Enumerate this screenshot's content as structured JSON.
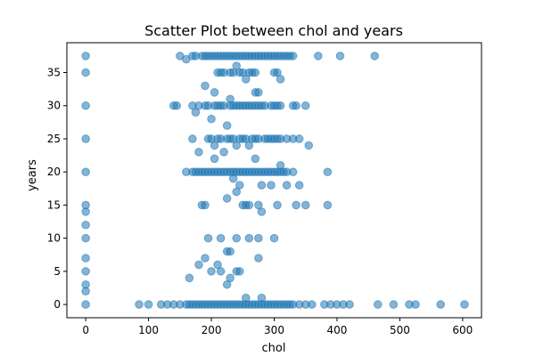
{
  "chart_data": {
    "type": "scatter",
    "title": "Scatter Plot between chol and years",
    "xlabel": "chol",
    "ylabel": "years",
    "xlim": [
      -30,
      630
    ],
    "ylim": [
      -2,
      39.5
    ],
    "xticks": [
      0,
      100,
      200,
      300,
      400,
      500,
      600
    ],
    "yticks": [
      0,
      5,
      10,
      15,
      20,
      25,
      30,
      35
    ],
    "grid": false,
    "legend": "none",
    "point_color": "#1f77b4",
    "point_alpha": 0.55,
    "series": [
      {
        "points": [
          [
            0,
            37.5
          ],
          [
            0,
            35
          ],
          [
            0,
            30
          ],
          [
            0,
            25
          ],
          [
            0,
            20
          ],
          [
            0,
            15
          ],
          [
            0,
            14
          ],
          [
            0,
            12
          ],
          [
            0,
            10
          ],
          [
            0,
            7
          ],
          [
            0,
            5
          ],
          [
            0,
            3
          ],
          [
            0,
            2
          ],
          [
            0,
            0
          ],
          [
            85,
            0
          ],
          [
            100,
            0
          ],
          [
            120,
            0
          ],
          [
            130,
            0
          ],
          [
            140,
            0
          ],
          [
            150,
            0
          ],
          [
            160,
            0
          ],
          [
            165,
            0
          ],
          [
            170,
            0
          ],
          [
            175,
            0
          ],
          [
            180,
            0
          ],
          [
            185,
            0
          ],
          [
            190,
            0
          ],
          [
            195,
            0
          ],
          [
            200,
            0
          ],
          [
            205,
            0
          ],
          [
            210,
            0
          ],
          [
            215,
            0
          ],
          [
            220,
            0
          ],
          [
            225,
            0
          ],
          [
            230,
            0
          ],
          [
            235,
            0
          ],
          [
            240,
            0
          ],
          [
            245,
            0
          ],
          [
            250,
            0
          ],
          [
            255,
            0
          ],
          [
            260,
            0
          ],
          [
            265,
            0
          ],
          [
            270,
            0
          ],
          [
            275,
            0
          ],
          [
            280,
            0
          ],
          [
            285,
            0
          ],
          [
            290,
            0
          ],
          [
            295,
            0
          ],
          [
            300,
            0
          ],
          [
            305,
            0
          ],
          [
            310,
            0
          ],
          [
            315,
            0
          ],
          [
            320,
            0
          ],
          [
            325,
            0
          ],
          [
            330,
            0
          ],
          [
            340,
            0
          ],
          [
            350,
            0
          ],
          [
            360,
            0
          ],
          [
            380,
            0
          ],
          [
            390,
            0
          ],
          [
            400,
            0
          ],
          [
            410,
            0
          ],
          [
            420,
            0
          ],
          [
            465,
            0
          ],
          [
            490,
            0
          ],
          [
            515,
            0
          ],
          [
            525,
            0
          ],
          [
            565,
            0
          ],
          [
            603,
            0
          ],
          [
            165,
            4
          ],
          [
            180,
            6
          ],
          [
            190,
            7
          ],
          [
            200,
            5
          ],
          [
            210,
            6
          ],
          [
            215,
            5
          ],
          [
            225,
            3
          ],
          [
            230,
            4
          ],
          [
            240,
            5
          ],
          [
            245,
            5
          ],
          [
            255,
            1
          ],
          [
            275,
            7
          ],
          [
            280,
            1
          ],
          [
            195,
            10
          ],
          [
            215,
            10
          ],
          [
            225,
            8
          ],
          [
            230,
            8
          ],
          [
            240,
            10
          ],
          [
            260,
            10
          ],
          [
            275,
            10
          ],
          [
            300,
            10
          ],
          [
            185,
            15
          ],
          [
            190,
            15
          ],
          [
            225,
            16
          ],
          [
            240,
            17
          ],
          [
            245,
            18
          ],
          [
            250,
            15
          ],
          [
            255,
            15
          ],
          [
            260,
            15
          ],
          [
            275,
            15
          ],
          [
            280,
            14
          ],
          [
            305,
            15
          ],
          [
            335,
            15
          ],
          [
            350,
            15
          ],
          [
            385,
            15
          ],
          [
            160,
            20
          ],
          [
            170,
            20
          ],
          [
            175,
            20
          ],
          [
            180,
            20
          ],
          [
            185,
            20
          ],
          [
            190,
            20
          ],
          [
            195,
            20
          ],
          [
            200,
            20
          ],
          [
            205,
            20
          ],
          [
            210,
            20
          ],
          [
            215,
            20
          ],
          [
            220,
            20
          ],
          [
            225,
            20
          ],
          [
            230,
            20
          ],
          [
            235,
            20
          ],
          [
            240,
            20
          ],
          [
            245,
            20
          ],
          [
            250,
            20
          ],
          [
            255,
            20
          ],
          [
            260,
            20
          ],
          [
            265,
            20
          ],
          [
            270,
            20
          ],
          [
            275,
            20
          ],
          [
            280,
            20
          ],
          [
            285,
            20
          ],
          [
            290,
            20
          ],
          [
            295,
            20
          ],
          [
            300,
            20
          ],
          [
            305,
            20
          ],
          [
            310,
            20
          ],
          [
            315,
            20
          ],
          [
            320,
            20
          ],
          [
            330,
            20
          ],
          [
            385,
            20
          ],
          [
            180,
            23
          ],
          [
            205,
            22
          ],
          [
            220,
            23
          ],
          [
            235,
            19
          ],
          [
            270,
            22
          ],
          [
            280,
            18
          ],
          [
            295,
            18
          ],
          [
            310,
            21
          ],
          [
            320,
            18
          ],
          [
            340,
            18
          ],
          [
            170,
            25
          ],
          [
            195,
            25
          ],
          [
            200,
            25
          ],
          [
            205,
            24
          ],
          [
            210,
            25
          ],
          [
            215,
            25
          ],
          [
            225,
            25
          ],
          [
            230,
            25
          ],
          [
            235,
            25
          ],
          [
            240,
            24
          ],
          [
            245,
            25
          ],
          [
            250,
            25
          ],
          [
            255,
            25
          ],
          [
            260,
            24
          ],
          [
            265,
            25
          ],
          [
            270,
            25
          ],
          [
            275,
            25
          ],
          [
            285,
            25
          ],
          [
            290,
            25
          ],
          [
            295,
            25
          ],
          [
            300,
            25
          ],
          [
            305,
            25
          ],
          [
            310,
            25
          ],
          [
            320,
            25
          ],
          [
            330,
            25
          ],
          [
            340,
            25
          ],
          [
            355,
            24
          ],
          [
            140,
            30
          ],
          [
            145,
            30
          ],
          [
            170,
            30
          ],
          [
            175,
            29
          ],
          [
            180,
            30
          ],
          [
            190,
            30
          ],
          [
            195,
            30
          ],
          [
            200,
            28
          ],
          [
            205,
            30
          ],
          [
            210,
            30
          ],
          [
            215,
            30
          ],
          [
            220,
            30
          ],
          [
            225,
            27
          ],
          [
            230,
            30
          ],
          [
            235,
            30
          ],
          [
            240,
            30
          ],
          [
            245,
            30
          ],
          [
            250,
            30
          ],
          [
            255,
            30
          ],
          [
            260,
            30
          ],
          [
            265,
            30
          ],
          [
            270,
            30
          ],
          [
            275,
            30
          ],
          [
            280,
            30
          ],
          [
            285,
            30
          ],
          [
            295,
            30
          ],
          [
            300,
            30
          ],
          [
            305,
            30
          ],
          [
            310,
            30
          ],
          [
            330,
            30
          ],
          [
            335,
            30
          ],
          [
            350,
            30
          ],
          [
            190,
            33
          ],
          [
            205,
            32
          ],
          [
            230,
            31
          ],
          [
            270,
            32
          ],
          [
            275,
            32
          ],
          [
            310,
            34
          ],
          [
            210,
            35
          ],
          [
            215,
            35
          ],
          [
            220,
            35
          ],
          [
            230,
            35
          ],
          [
            235,
            35
          ],
          [
            245,
            35
          ],
          [
            250,
            35
          ],
          [
            255,
            34
          ],
          [
            260,
            35
          ],
          [
            265,
            35
          ],
          [
            270,
            35
          ],
          [
            300,
            35
          ],
          [
            305,
            35
          ],
          [
            240,
            36
          ],
          [
            150,
            37.5
          ],
          [
            160,
            37
          ],
          [
            170,
            37.5
          ],
          [
            175,
            37.5
          ],
          [
            185,
            37.5
          ],
          [
            190,
            37.5
          ],
          [
            195,
            37.5
          ],
          [
            200,
            37.5
          ],
          [
            205,
            37.5
          ],
          [
            210,
            37.5
          ],
          [
            215,
            37.5
          ],
          [
            220,
            37.5
          ],
          [
            225,
            37.5
          ],
          [
            230,
            37.5
          ],
          [
            235,
            37.5
          ],
          [
            240,
            37.5
          ],
          [
            245,
            37.5
          ],
          [
            250,
            37.5
          ],
          [
            255,
            37.5
          ],
          [
            260,
            37.5
          ],
          [
            265,
            37.5
          ],
          [
            270,
            37.5
          ],
          [
            275,
            37.5
          ],
          [
            280,
            37.5
          ],
          [
            285,
            37.5
          ],
          [
            290,
            37.5
          ],
          [
            295,
            37.5
          ],
          [
            300,
            37.5
          ],
          [
            305,
            37.5
          ],
          [
            310,
            37.5
          ],
          [
            315,
            37.5
          ],
          [
            320,
            37.5
          ],
          [
            325,
            37.5
          ],
          [
            330,
            37.5
          ],
          [
            370,
            37.5
          ],
          [
            405,
            37.5
          ],
          [
            460,
            37.5
          ]
        ]
      }
    ]
  }
}
